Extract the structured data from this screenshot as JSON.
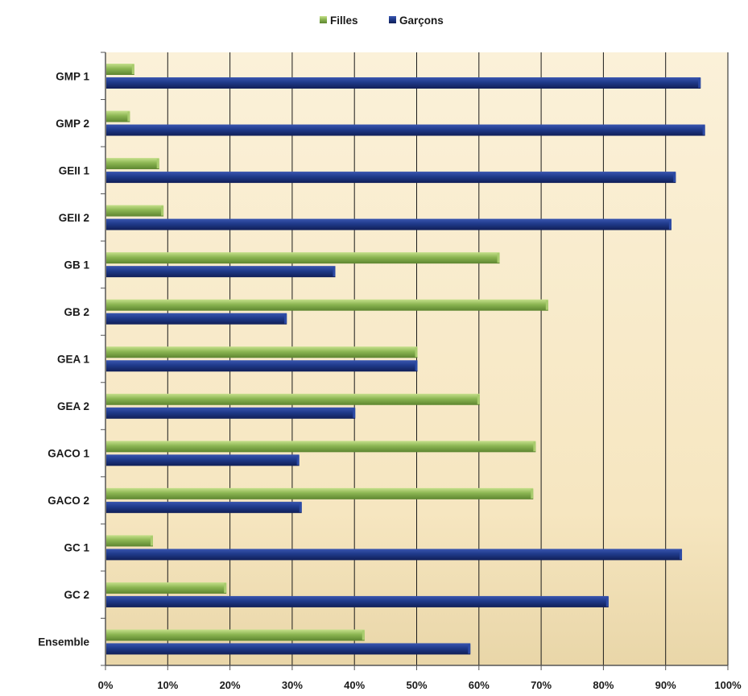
{
  "chart_data": {
    "type": "bar",
    "orientation": "horizontal",
    "stacking": "none",
    "categories": [
      "GMP 1",
      "GMP 2",
      "GEII 1",
      "GEII 2",
      "GB 1",
      "GB 2",
      "GEA 1",
      "GEA 2",
      "GACO 1",
      "GACO 2",
      "GC 1",
      "GC 2",
      "Ensemble"
    ],
    "series": [
      {
        "name": "Filles",
        "color": "#7ea84a",
        "values": [
          4.5,
          3.8,
          8.5,
          9.2,
          63.2,
          71.0,
          50.0,
          60.0,
          69.0,
          68.6,
          7.5,
          19.3,
          41.5
        ]
      },
      {
        "name": "Garçons",
        "color": "#1f3a8a",
        "values": [
          95.5,
          96.2,
          91.5,
          90.8,
          36.8,
          29.0,
          50.0,
          40.0,
          31.0,
          31.4,
          92.5,
          80.7,
          58.5
        ]
      }
    ],
    "xlim": [
      0,
      100
    ],
    "x_ticks": [
      "0%",
      "10%",
      "20%",
      "30%",
      "40%",
      "50%",
      "60%",
      "70%",
      "80%",
      "90%",
      "100%"
    ],
    "grid": true,
    "legend_position": "top",
    "plot_background": "#f7e9c6"
  }
}
